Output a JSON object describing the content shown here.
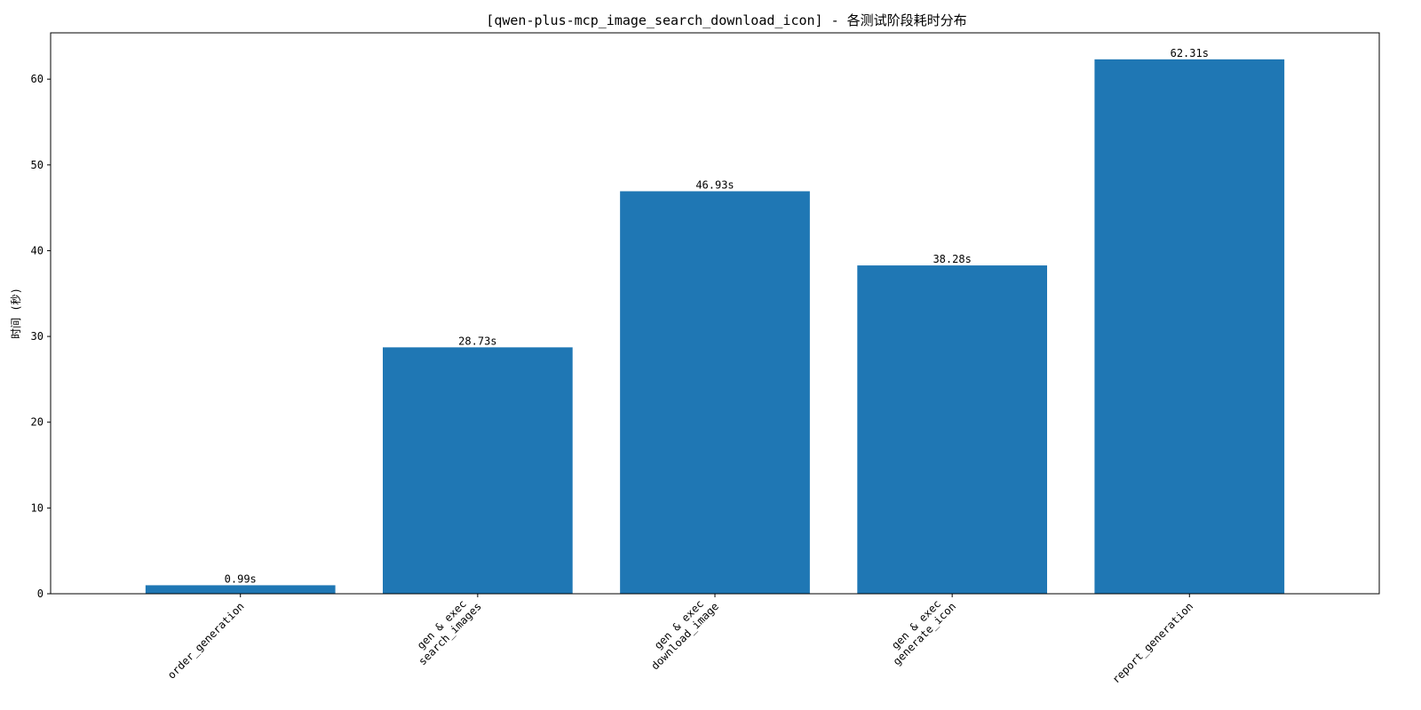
{
  "chart_data": {
    "type": "bar",
    "title": "[qwen-plus-mcp_image_search_download_icon] - 各测试阶段耗时分布",
    "xlabel": "",
    "ylabel": "时间 (秒)",
    "categories": [
      [
        "order_generation"
      ],
      [
        "gen & exec",
        "search_images"
      ],
      [
        "gen & exec",
        "download_image"
      ],
      [
        "gen & exec",
        "generate_icon"
      ],
      [
        "report_generation"
      ]
    ],
    "values": [
      0.99,
      28.73,
      46.93,
      38.28,
      62.31
    ],
    "value_labels": [
      "0.99s",
      "28.73s",
      "46.93s",
      "38.28s",
      "62.31s"
    ],
    "ylim": [
      0,
      65.4
    ],
    "yticks": [
      0,
      10,
      20,
      30,
      40,
      50,
      60
    ],
    "grid": false,
    "bar_color": "#1f77b4"
  }
}
